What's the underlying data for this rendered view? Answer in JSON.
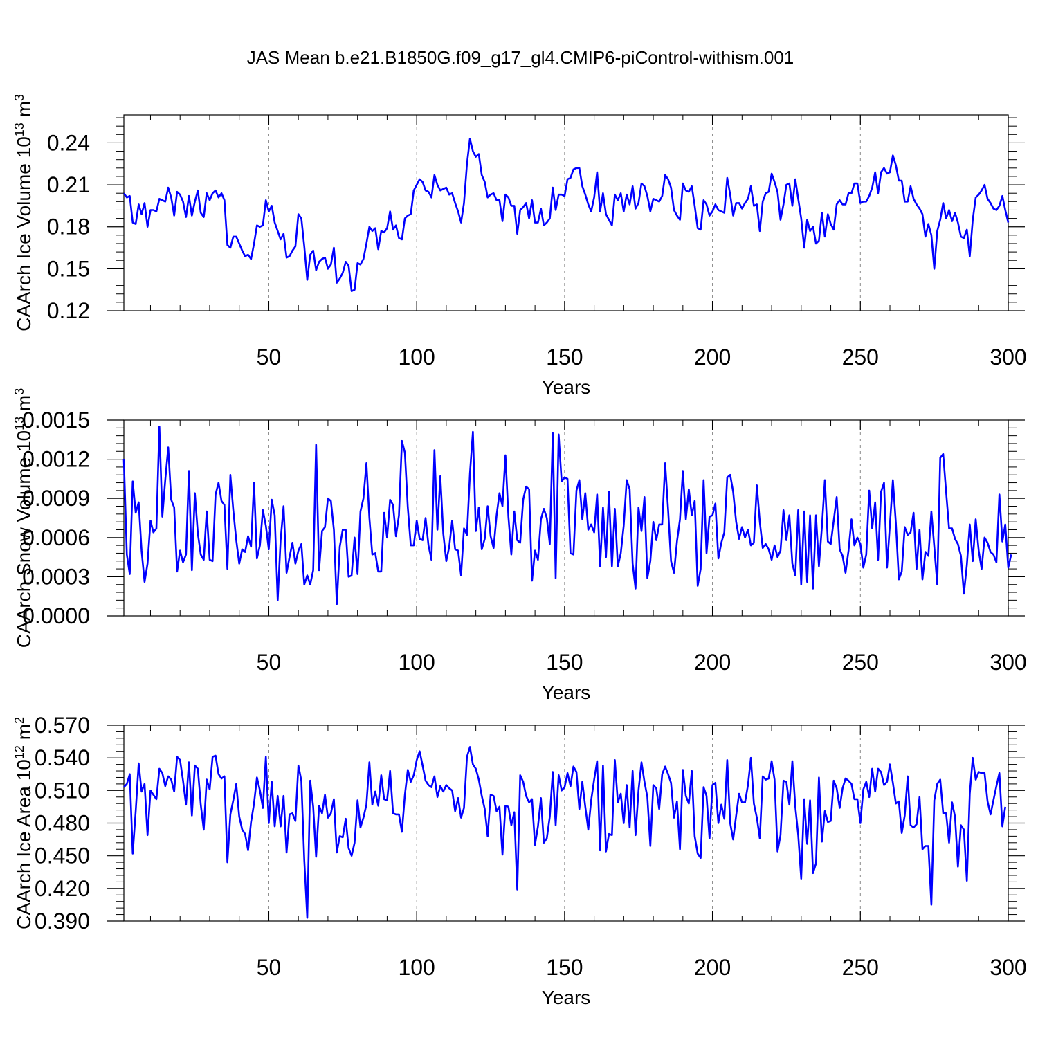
{
  "figure_title": "JAS Mean b.e21.B1850G.f09_g17_gl4.CMIP6-piControl-withism.001",
  "colors": {
    "series": "#0000ff",
    "axis": "#000000",
    "ref_line": "#888888"
  },
  "chart_data": [
    {
      "type": "line",
      "xlabel": "Years",
      "ylabel": "CAArch Ice Volume",
      "ylabel_scale": "10",
      "ylabel_exponent": "13",
      "ylabel_unit": "m",
      "ylabel_unit_exponent": "3",
      "xlim": [
        1,
        300
      ],
      "ylim": [
        0.12,
        0.26
      ],
      "xticks": [
        50,
        100,
        150,
        200,
        250,
        300
      ],
      "xtick_labels": [
        "50",
        "100",
        "150",
        "200",
        "250",
        "300"
      ],
      "yticks": [
        0.12,
        0.15,
        0.18,
        0.21,
        0.24
      ],
      "ytick_labels": [
        "0.12",
        "0.15",
        "0.18",
        "0.21",
        "0.24"
      ],
      "grid": "dashed vertical lines at x = 50, 100, 150, 200, 250",
      "x_start": 1,
      "values": [
        0.204,
        0.201,
        0.202,
        0.183,
        0.182,
        0.196,
        0.189,
        0.197,
        0.18,
        0.192,
        0.192,
        0.191,
        0.2,
        0.199,
        0.198,
        0.208,
        0.201,
        0.188,
        0.205,
        0.203,
        0.198,
        0.187,
        0.202,
        0.188,
        0.198,
        0.206,
        0.19,
        0.187,
        0.204,
        0.199,
        0.204,
        0.206,
        0.201,
        0.204,
        0.199,
        0.167,
        0.165,
        0.173,
        0.173,
        0.168,
        0.163,
        0.159,
        0.16,
        0.157,
        0.168,
        0.181,
        0.18,
        0.181,
        0.199,
        0.191,
        0.195,
        0.183,
        0.177,
        0.171,
        0.175,
        0.158,
        0.159,
        0.163,
        0.166,
        0.189,
        0.186,
        0.166,
        0.142,
        0.16,
        0.163,
        0.149,
        0.155,
        0.157,
        0.158,
        0.15,
        0.153,
        0.165,
        0.14,
        0.143,
        0.147,
        0.155,
        0.152,
        0.134,
        0.135,
        0.154,
        0.153,
        0.157,
        0.168,
        0.18,
        0.177,
        0.179,
        0.164,
        0.177,
        0.176,
        0.179,
        0.191,
        0.178,
        0.181,
        0.172,
        0.171,
        0.186,
        0.188,
        0.189,
        0.206,
        0.21,
        0.214,
        0.212,
        0.206,
        0.205,
        0.201,
        0.217,
        0.21,
        0.206,
        0.207,
        0.208,
        0.203,
        0.204,
        0.197,
        0.191,
        0.183,
        0.197,
        0.225,
        0.243,
        0.234,
        0.23,
        0.232,
        0.217,
        0.212,
        0.201,
        0.203,
        0.204,
        0.199,
        0.199,
        0.184,
        0.203,
        0.201,
        0.195,
        0.195,
        0.175,
        0.192,
        0.194,
        0.197,
        0.186,
        0.199,
        0.183,
        0.183,
        0.193,
        0.181,
        0.183,
        0.186,
        0.208,
        0.192,
        0.203,
        0.203,
        0.202,
        0.214,
        0.215,
        0.221,
        0.222,
        0.222,
        0.209,
        0.203,
        0.196,
        0.191,
        0.201,
        0.219,
        0.191,
        0.204,
        0.189,
        0.185,
        0.181,
        0.203,
        0.199,
        0.204,
        0.191,
        0.203,
        0.196,
        0.209,
        0.193,
        0.197,
        0.211,
        0.209,
        0.202,
        0.191,
        0.2,
        0.199,
        0.198,
        0.202,
        0.217,
        0.214,
        0.208,
        0.192,
        0.188,
        0.185,
        0.211,
        0.206,
        0.205,
        0.209,
        0.195,
        0.179,
        0.178,
        0.199,
        0.196,
        0.188,
        0.191,
        0.196,
        0.192,
        0.191,
        0.19,
        0.215,
        0.203,
        0.188,
        0.197,
        0.197,
        0.193,
        0.197,
        0.2,
        0.209,
        0.195,
        0.196,
        0.177,
        0.198,
        0.204,
        0.205,
        0.218,
        0.212,
        0.205,
        0.185,
        0.196,
        0.21,
        0.211,
        0.195,
        0.214,
        0.2,
        0.186,
        0.165,
        0.185,
        0.177,
        0.18,
        0.168,
        0.17,
        0.19,
        0.173,
        0.189,
        0.182,
        0.178,
        0.196,
        0.199,
        0.196,
        0.196,
        0.204,
        0.204,
        0.211,
        0.211,
        0.197,
        0.198,
        0.198,
        0.202,
        0.208,
        0.219,
        0.204,
        0.219,
        0.222,
        0.218,
        0.219,
        0.231,
        0.224,
        0.213,
        0.213,
        0.198,
        0.198,
        0.209,
        0.2,
        0.196,
        0.193,
        0.189,
        0.173,
        0.182,
        0.174,
        0.15,
        0.177,
        0.185,
        0.197,
        0.186,
        0.192,
        0.184,
        0.19,
        0.183,
        0.173,
        0.172,
        0.178,
        0.159,
        0.185,
        0.201,
        0.203,
        0.206,
        0.21,
        0.2,
        0.197,
        0.193,
        0.192,
        0.195,
        0.202,
        0.192,
        0.183
      ]
    },
    {
      "type": "line",
      "xlabel": "Years",
      "ylabel": "CAArch Snow Volume",
      "ylabel_scale": "10",
      "ylabel_exponent": "13",
      "ylabel_unit": "m",
      "ylabel_unit_exponent": "3",
      "xlim": [
        1,
        300
      ],
      "ylim": [
        0.0,
        0.0015
      ],
      "xticks": [
        50,
        100,
        150,
        200,
        250,
        300
      ],
      "xtick_labels": [
        "50",
        "100",
        "150",
        "200",
        "250",
        "300"
      ],
      "yticks": [
        0.0,
        0.0003,
        0.0006,
        0.0009,
        0.0012,
        0.0015
      ],
      "ytick_labels": [
        "0.0000",
        "0.0003",
        "0.0006",
        "0.0009",
        "0.0012",
        "0.0015"
      ],
      "grid": "dashed vertical lines at x = 50, 100, 150, 200, 250",
      "x_start": 1,
      "values": [
        0.0012,
        0.00047,
        0.00032,
        0.00103,
        0.00079,
        0.00087,
        0.0005,
        0.00026,
        0.0004,
        0.00073,
        0.00064,
        0.00067,
        0.00145,
        0.00076,
        0.00104,
        0.00129,
        0.00089,
        0.00083,
        0.00034,
        0.0005,
        0.00041,
        0.00047,
        0.00111,
        0.00035,
        0.00094,
        0.00063,
        0.00047,
        0.00043,
        0.0008,
        0.00043,
        0.00042,
        0.00093,
        0.00102,
        0.00088,
        0.00085,
        0.00036,
        0.00108,
        0.00081,
        0.00058,
        0.0004,
        0.00051,
        0.00049,
        0.00061,
        0.00053,
        0.00102,
        0.00044,
        0.00054,
        0.00081,
        0.00069,
        0.00051,
        0.00089,
        0.00077,
        0.00012,
        0.00058,
        0.00084,
        0.00033,
        0.00045,
        0.00056,
        0.0004,
        0.0005,
        0.00055,
        0.00024,
        0.00031,
        0.00024,
        0.00035,
        0.00131,
        0.00035,
        0.00065,
        0.00068,
        0.0009,
        0.00088,
        0.00066,
        9e-05,
        0.00053,
        0.00066,
        0.00066,
        0.0003,
        0.00031,
        0.0006,
        0.00032,
        0.0008,
        0.0009,
        0.00117,
        0.00075,
        0.00047,
        0.00048,
        0.00034,
        0.00034,
        0.00079,
        0.0006,
        0.00089,
        0.00085,
        0.00061,
        0.00077,
        0.00134,
        0.00125,
        0.00083,
        0.00054,
        0.00054,
        0.00073,
        0.00059,
        0.00058,
        0.00075,
        0.00054,
        0.00043,
        0.00127,
        0.00066,
        0.00107,
        0.00063,
        0.00042,
        0.00053,
        0.00073,
        0.00051,
        0.0005,
        0.00031,
        0.00067,
        0.00062,
        0.00109,
        0.00141,
        0.00065,
        0.00083,
        0.00051,
        0.00059,
        0.00084,
        0.00061,
        0.00052,
        0.00077,
        0.00094,
        0.00084,
        0.00123,
        0.00076,
        0.00047,
        0.0008,
        0.00058,
        0.00056,
        0.00089,
        0.00099,
        0.00097,
        0.00027,
        0.0005,
        0.00043,
        0.00074,
        0.00082,
        0.00075,
        0.00055,
        0.0014,
        0.00029,
        0.00139,
        0.00103,
        0.00106,
        0.00105,
        0.00048,
        0.00047,
        0.00096,
        0.00104,
        0.00074,
        0.00094,
        0.00066,
        0.0007,
        0.00064,
        0.00093,
        0.00038,
        0.00083,
        0.00045,
        0.00095,
        0.00038,
        0.00082,
        0.00038,
        0.00048,
        0.00069,
        0.00104,
        0.00097,
        0.0004,
        0.00021,
        0.00083,
        0.00065,
        0.00091,
        0.00029,
        0.00042,
        0.00072,
        0.00058,
        0.0007,
        0.0007,
        0.00117,
        0.00081,
        0.00042,
        0.00033,
        0.00057,
        0.00074,
        0.00111,
        0.00074,
        0.00097,
        0.00077,
        0.00088,
        0.00023,
        0.00036,
        0.00104,
        0.00048,
        0.00076,
        0.00077,
        0.00086,
        0.00044,
        0.00056,
        0.00064,
        0.00106,
        0.00108,
        0.00095,
        0.00072,
        0.00059,
        0.00068,
        0.0006,
        0.00066,
        0.00054,
        0.00056,
        0.001,
        0.00072,
        0.00052,
        0.00055,
        0.00051,
        0.00043,
        0.00054,
        0.00045,
        0.0005,
        0.00081,
        0.00058,
        0.00077,
        0.0004,
        0.00031,
        0.00081,
        0.00024,
        0.0008,
        0.00026,
        0.00077,
        0.00021,
        0.00077,
        0.00038,
        0.00068,
        0.00104,
        0.00057,
        0.00055,
        0.00073,
        0.00091,
        0.00051,
        0.00046,
        0.00033,
        0.0005,
        0.00074,
        0.00054,
        0.0006,
        0.00055,
        0.00037,
        0.00047,
        0.00096,
        0.00067,
        0.00087,
        0.00043,
        0.00095,
        0.00102,
        0.00037,
        0.0007,
        0.00104,
        0.00071,
        0.00028,
        0.00034,
        0.00068,
        0.00062,
        0.00064,
        0.00079,
        0.00036,
        0.00066,
        0.00028,
        0.00049,
        0.00046,
        0.0008,
        0.00053,
        0.00024,
        0.00121,
        0.00124,
        0.00095,
        0.00067,
        0.00067,
        0.00059,
        0.00055,
        0.00046,
        0.00017,
        0.00039,
        0.0007,
        0.00042,
        0.00074,
        0.0005,
        0.00036,
        0.0006,
        0.00056,
        0.00049,
        0.00047,
        0.00041,
        0.00093,
        0.00057,
        0.0007,
        0.00037,
        0.00047
      ]
    },
    {
      "type": "line",
      "xlabel": "Years",
      "ylabel": "CAArch Ice Area",
      "ylabel_scale": "10",
      "ylabel_exponent": "12",
      "ylabel_unit": "m",
      "ylabel_unit_exponent": "2",
      "xlim": [
        1,
        300
      ],
      "ylim": [
        0.39,
        0.57
      ],
      "xticks": [
        50,
        100,
        150,
        200,
        250,
        300
      ],
      "xtick_labels": [
        "50",
        "100",
        "150",
        "200",
        "250",
        "300"
      ],
      "yticks": [
        0.39,
        0.42,
        0.45,
        0.48,
        0.51,
        0.54,
        0.57
      ],
      "ytick_labels": [
        "0.390",
        "0.420",
        "0.450",
        "0.480",
        "0.510",
        "0.540",
        "0.570"
      ],
      "grid": "dashed vertical lines at x = 50, 100, 150, 200, 250",
      "x_start": 1,
      "values": [
        0.513,
        0.516,
        0.525,
        0.452,
        0.491,
        0.535,
        0.509,
        0.516,
        0.469,
        0.51,
        0.506,
        0.502,
        0.53,
        0.526,
        0.514,
        0.523,
        0.52,
        0.509,
        0.541,
        0.538,
        0.519,
        0.497,
        0.536,
        0.487,
        0.533,
        0.53,
        0.497,
        0.474,
        0.52,
        0.511,
        0.541,
        0.542,
        0.525,
        0.521,
        0.523,
        0.444,
        0.488,
        0.501,
        0.516,
        0.486,
        0.474,
        0.47,
        0.455,
        0.481,
        0.498,
        0.522,
        0.51,
        0.494,
        0.541,
        0.48,
        0.518,
        0.477,
        0.505,
        0.477,
        0.505,
        0.453,
        0.488,
        0.489,
        0.482,
        0.533,
        0.519,
        0.446,
        0.393,
        0.519,
        0.495,
        0.449,
        0.496,
        0.489,
        0.506,
        0.485,
        0.489,
        0.502,
        0.453,
        0.468,
        0.467,
        0.484,
        0.457,
        0.45,
        0.462,
        0.501,
        0.476,
        0.485,
        0.497,
        0.536,
        0.497,
        0.509,
        0.496,
        0.524,
        0.502,
        0.501,
        0.528,
        0.489,
        0.488,
        0.488,
        0.472,
        0.506,
        0.529,
        0.518,
        0.524,
        0.538,
        0.546,
        0.533,
        0.519,
        0.515,
        0.513,
        0.523,
        0.504,
        0.514,
        0.509,
        0.515,
        0.512,
        0.51,
        0.491,
        0.503,
        0.485,
        0.494,
        0.541,
        0.55,
        0.534,
        0.53,
        0.52,
        0.505,
        0.493,
        0.468,
        0.506,
        0.505,
        0.491,
        0.495,
        0.451,
        0.496,
        0.495,
        0.478,
        0.49,
        0.419,
        0.524,
        0.518,
        0.505,
        0.499,
        0.502,
        0.46,
        0.477,
        0.503,
        0.462,
        0.466,
        0.486,
        0.527,
        0.478,
        0.524,
        0.51,
        0.513,
        0.526,
        0.514,
        0.532,
        0.527,
        0.493,
        0.518,
        0.495,
        0.474,
        0.501,
        0.52,
        0.537,
        0.455,
        0.533,
        0.454,
        0.47,
        0.469,
        0.538,
        0.499,
        0.507,
        0.48,
        0.515,
        0.476,
        0.528,
        0.469,
        0.51,
        0.536,
        0.518,
        0.504,
        0.459,
        0.515,
        0.512,
        0.493,
        0.525,
        0.532,
        0.525,
        0.517,
        0.485,
        0.5,
        0.456,
        0.529,
        0.505,
        0.498,
        0.528,
        0.468,
        0.452,
        0.448,
        0.513,
        0.505,
        0.466,
        0.515,
        0.517,
        0.48,
        0.497,
        0.484,
        0.538,
        0.48,
        0.465,
        0.487,
        0.507,
        0.499,
        0.499,
        0.515,
        0.54,
        0.498,
        0.485,
        0.466,
        0.523,
        0.52,
        0.521,
        0.537,
        0.52,
        0.454,
        0.469,
        0.519,
        0.518,
        0.497,
        0.537,
        0.495,
        0.469,
        0.429,
        0.502,
        0.461,
        0.501,
        0.434,
        0.443,
        0.522,
        0.463,
        0.491,
        0.481,
        0.482,
        0.519,
        0.512,
        0.494,
        0.512,
        0.521,
        0.519,
        0.516,
        0.502,
        0.502,
        0.48,
        0.511,
        0.518,
        0.504,
        0.53,
        0.509,
        0.53,
        0.527,
        0.515,
        0.518,
        0.534,
        0.517,
        0.498,
        0.5,
        0.471,
        0.487,
        0.523,
        0.478,
        0.476,
        0.479,
        0.504,
        0.456,
        0.459,
        0.459,
        0.405,
        0.501,
        0.516,
        0.52,
        0.489,
        0.489,
        0.462,
        0.499,
        0.486,
        0.44,
        0.478,
        0.474,
        0.427,
        0.507,
        0.54,
        0.52,
        0.527,
        0.526,
        0.526,
        0.5,
        0.488,
        0.501,
        0.514,
        0.526,
        0.477,
        0.495
      ]
    }
  ]
}
